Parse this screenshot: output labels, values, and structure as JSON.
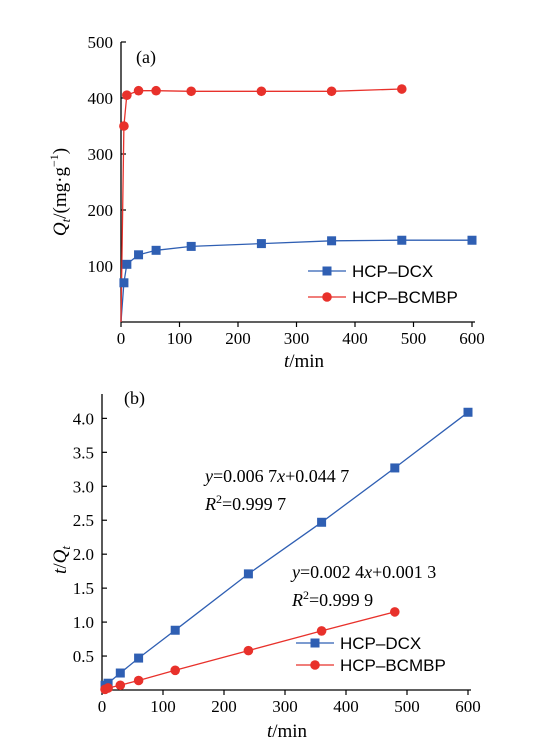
{
  "chart_data": [
    {
      "type": "line",
      "panel_label": "(a)",
      "xlabel": "t/min",
      "ylabel": "Qt/(mg·g⁻¹)",
      "xlim": [
        0,
        600
      ],
      "ylim": [
        0,
        500
      ],
      "xticks": [
        "0",
        "100",
        "200",
        "300",
        "400",
        "500",
        "600"
      ],
      "yticks": [
        "100",
        "200",
        "300",
        "400",
        "500"
      ],
      "legend_position": "lower-right",
      "series": [
        {
          "name": "HCP–DCX",
          "marker": "square",
          "color": "#2f5fb3",
          "x": [
            0,
            5,
            10,
            30,
            60,
            120,
            240,
            360,
            480,
            600
          ],
          "y": [
            0,
            70,
            103,
            120,
            128,
            135,
            140,
            145,
            146,
            146
          ],
          "marked": [
            false,
            true,
            true,
            true,
            true,
            true,
            true,
            true,
            true,
            true
          ]
        },
        {
          "name": "HCP–BCMBP",
          "marker": "circle",
          "color": "#e8312b",
          "x": [
            0,
            5,
            10,
            30,
            60,
            120,
            240,
            360,
            480
          ],
          "y": [
            0,
            350,
            405,
            413,
            413,
            412,
            412,
            412,
            416
          ],
          "marked": [
            false,
            true,
            true,
            true,
            true,
            true,
            true,
            true,
            true
          ]
        }
      ]
    },
    {
      "type": "line",
      "panel_label": "(b)",
      "xlabel": "t/min",
      "ylabel": "t/Qt",
      "xlim": [
        0,
        600
      ],
      "ylim": [
        0,
        4.3
      ],
      "xticks": [
        "0",
        "100",
        "200",
        "300",
        "400",
        "500",
        "600"
      ],
      "yticks": [
        "0.5",
        "1.0",
        "1.5",
        "2.0",
        "2.5",
        "3.0",
        "3.5",
        "4.0"
      ],
      "legend_position": "lower-right",
      "series": [
        {
          "name": "HCP–DCX",
          "marker": "square",
          "color": "#2f5fb3",
          "x": [
            5,
            10,
            30,
            60,
            120,
            240,
            360,
            480,
            600
          ],
          "y": [
            0.07,
            0.1,
            0.25,
            0.47,
            0.88,
            1.71,
            2.47,
            3.27,
            4.09
          ]
        },
        {
          "name": "HCP–BCMBP",
          "marker": "circle",
          "color": "#e8312b",
          "x": [
            5,
            10,
            30,
            60,
            120,
            240,
            360,
            480
          ],
          "y": [
            0.01,
            0.03,
            0.07,
            0.14,
            0.29,
            0.58,
            0.87,
            1.15
          ]
        }
      ],
      "annotations": [
        {
          "eq_y": "y",
          "eq_mid": "=0.006 7",
          "eq_x": "x",
          "eq_rest": "+0.044 7",
          "r_base": "R",
          "r_sup": "2",
          "r_rest": "=0.999 7"
        },
        {
          "eq_y": "y",
          "eq_mid": "=0.002 4",
          "eq_x": "x",
          "eq_rest": "+0.001 3",
          "r_base": "R",
          "r_sup": "2",
          "r_rest": "=0.999 9"
        }
      ]
    }
  ]
}
